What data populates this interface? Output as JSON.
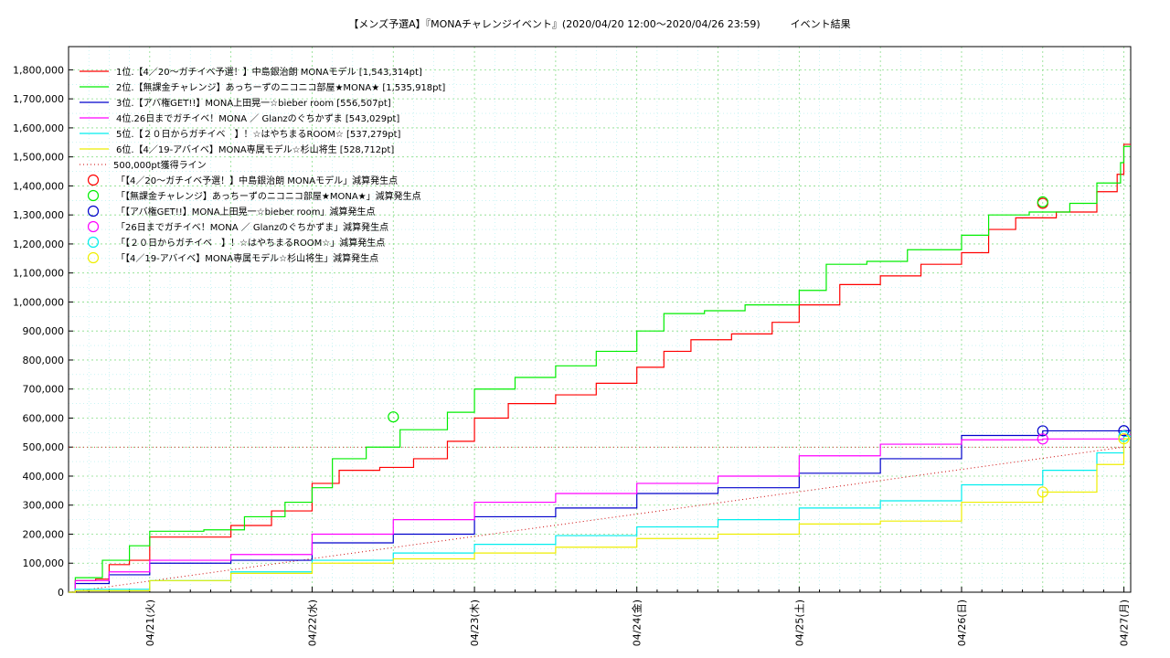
{
  "chart_data": {
    "type": "line",
    "title": "【メンズ予選A】『MONAチャレンジイベント』(2020/04/20 12:00～2020/04/26 23:59)　　　イベント結果",
    "xlabel": "",
    "ylabel": "",
    "xlim": [
      "2020-04-20 12:00",
      "2020-04-27 01:00"
    ],
    "ylim": [
      0,
      1880000
    ],
    "y_ticks": [
      "0",
      "100,000",
      "200,000",
      "300,000",
      "400,000",
      "500,000",
      "600,000",
      "700,000",
      "800,000",
      "900,000",
      "1,000,000",
      "1,100,000",
      "1,200,000",
      "1,300,000",
      "1,400,000",
      "1,500,000",
      "1,600,000",
      "1,700,000",
      "1,800,000"
    ],
    "x_ticks": [
      {
        "t": "2020-04-21 00:00",
        "label": "04/21(火)"
      },
      {
        "t": "2020-04-22 00:00",
        "label": "04/22(水)"
      },
      {
        "t": "2020-04-23 00:00",
        "label": "04/23(木)"
      },
      {
        "t": "2020-04-24 00:00",
        "label": "04/24(金)"
      },
      {
        "t": "2020-04-25 00:00",
        "label": "04/25(土)"
      },
      {
        "t": "2020-04-26 00:00",
        "label": "04/26(日)"
      },
      {
        "t": "2020-04-27 00:00",
        "label": "04/27(月)"
      }
    ],
    "grid": true,
    "legend_position": "top-left",
    "series": [
      {
        "name": "1位.【4／20～ガチイベ予選！】中島銀治朗 MONAモデル [1,543,314pt]",
        "color": "#ff0000",
        "points": [
          [
            "2020-04-20 12:00",
            0
          ],
          [
            "2020-04-20 13:00",
            40000
          ],
          [
            "2020-04-20 16:00",
            45000
          ],
          [
            "2020-04-20 18:00",
            95000
          ],
          [
            "2020-04-20 21:00",
            110000
          ],
          [
            "2020-04-21 00:00",
            190000
          ],
          [
            "2020-04-21 06:00",
            190000
          ],
          [
            "2020-04-21 12:00",
            230000
          ],
          [
            "2020-04-21 18:00",
            280000
          ],
          [
            "2020-04-22 00:00",
            375000
          ],
          [
            "2020-04-22 04:00",
            420000
          ],
          [
            "2020-04-22 10:00",
            430000
          ],
          [
            "2020-04-22 15:00",
            460000
          ],
          [
            "2020-04-22 20:00",
            520000
          ],
          [
            "2020-04-23 00:00",
            600000
          ],
          [
            "2020-04-23 05:00",
            650000
          ],
          [
            "2020-04-23 12:00",
            680000
          ],
          [
            "2020-04-23 18:00",
            720000
          ],
          [
            "2020-04-24 00:00",
            775000
          ],
          [
            "2020-04-24 04:00",
            830000
          ],
          [
            "2020-04-24 08:00",
            870000
          ],
          [
            "2020-04-24 14:00",
            890000
          ],
          [
            "2020-04-24 20:00",
            930000
          ],
          [
            "2020-04-25 00:00",
            990000
          ],
          [
            "2020-04-25 06:00",
            1060000
          ],
          [
            "2020-04-25 12:00",
            1090000
          ],
          [
            "2020-04-25 18:00",
            1130000
          ],
          [
            "2020-04-26 00:00",
            1170000
          ],
          [
            "2020-04-26 04:00",
            1250000
          ],
          [
            "2020-04-26 08:00",
            1290000
          ],
          [
            "2020-04-26 14:00",
            1310000
          ],
          [
            "2020-04-26 20:00",
            1380000
          ],
          [
            "2020-04-26 23:00",
            1440000
          ],
          [
            "2020-04-26 23:59",
            1543314
          ]
        ]
      },
      {
        "name": "2位.【無課金チャレンジ】あっちーずのニコニコ部屋★MONA★ [1,535,918pt]",
        "color": "#00ee00",
        "points": [
          [
            "2020-04-20 12:00",
            0
          ],
          [
            "2020-04-20 13:00",
            50000
          ],
          [
            "2020-04-20 17:00",
            110000
          ],
          [
            "2020-04-20 21:00",
            160000
          ],
          [
            "2020-04-21 00:00",
            210000
          ],
          [
            "2020-04-21 08:00",
            215000
          ],
          [
            "2020-04-21 14:00",
            260000
          ],
          [
            "2020-04-21 20:00",
            310000
          ],
          [
            "2020-04-22 00:00",
            360000
          ],
          [
            "2020-04-22 03:00",
            460000
          ],
          [
            "2020-04-22 08:00",
            500000
          ],
          [
            "2020-04-22 13:00",
            560000
          ],
          [
            "2020-04-22 20:00",
            620000
          ],
          [
            "2020-04-23 00:00",
            700000
          ],
          [
            "2020-04-23 06:00",
            740000
          ],
          [
            "2020-04-23 12:00",
            780000
          ],
          [
            "2020-04-23 18:00",
            830000
          ],
          [
            "2020-04-24 00:00",
            900000
          ],
          [
            "2020-04-24 04:00",
            960000
          ],
          [
            "2020-04-24 10:00",
            970000
          ],
          [
            "2020-04-24 16:00",
            990000
          ],
          [
            "2020-04-25 00:00",
            1040000
          ],
          [
            "2020-04-25 04:00",
            1130000
          ],
          [
            "2020-04-25 10:00",
            1140000
          ],
          [
            "2020-04-25 16:00",
            1180000
          ],
          [
            "2020-04-26 00:00",
            1230000
          ],
          [
            "2020-04-26 04:00",
            1300000
          ],
          [
            "2020-04-26 10:00",
            1310000
          ],
          [
            "2020-04-26 16:00",
            1340000
          ],
          [
            "2020-04-26 20:00",
            1410000
          ],
          [
            "2020-04-26 23:30",
            1480000
          ],
          [
            "2020-04-26 23:59",
            1535918
          ]
        ]
      },
      {
        "name": "3位.【アバ権GET!!】MONA上田晃一☆bieber room [556,507pt]",
        "color": "#0000cc",
        "points": [
          [
            "2020-04-20 12:00",
            0
          ],
          [
            "2020-04-20 13:00",
            30000
          ],
          [
            "2020-04-20 18:00",
            60000
          ],
          [
            "2020-04-21 00:00",
            100000
          ],
          [
            "2020-04-21 12:00",
            110000
          ],
          [
            "2020-04-22 00:00",
            170000
          ],
          [
            "2020-04-22 12:00",
            200000
          ],
          [
            "2020-04-23 00:00",
            260000
          ],
          [
            "2020-04-23 12:00",
            290000
          ],
          [
            "2020-04-24 00:00",
            340000
          ],
          [
            "2020-04-24 12:00",
            360000
          ],
          [
            "2020-04-25 00:00",
            410000
          ],
          [
            "2020-04-25 12:00",
            460000
          ],
          [
            "2020-04-26 00:00",
            540000
          ],
          [
            "2020-04-26 12:00",
            556000
          ],
          [
            "2020-04-26 23:59",
            556507
          ]
        ]
      },
      {
        "name": "4位.26日までガチイベ！MONA ／ Glanzのぐちかずま [543,029pt]",
        "color": "#ff00ff",
        "points": [
          [
            "2020-04-20 12:00",
            0
          ],
          [
            "2020-04-20 13:00",
            40000
          ],
          [
            "2020-04-20 18:00",
            70000
          ],
          [
            "2020-04-21 00:00",
            110000
          ],
          [
            "2020-04-21 12:00",
            130000
          ],
          [
            "2020-04-22 00:00",
            200000
          ],
          [
            "2020-04-22 12:00",
            250000
          ],
          [
            "2020-04-23 00:00",
            310000
          ],
          [
            "2020-04-23 12:00",
            340000
          ],
          [
            "2020-04-24 00:00",
            375000
          ],
          [
            "2020-04-24 12:00",
            400000
          ],
          [
            "2020-04-25 00:00",
            470000
          ],
          [
            "2020-04-25 12:00",
            510000
          ],
          [
            "2020-04-26 00:00",
            525000
          ],
          [
            "2020-04-26 12:00",
            528000
          ],
          [
            "2020-04-26 23:59",
            543029
          ]
        ]
      },
      {
        "name": "5位.【２０日からガチイベ　】！☆はやちまるROOM☆ [537,279pt]",
        "color": "#00eeee",
        "points": [
          [
            "2020-04-20 12:00",
            0
          ],
          [
            "2020-04-20 13:00",
            10000
          ],
          [
            "2020-04-21 00:00",
            40000
          ],
          [
            "2020-04-21 12:00",
            70000
          ],
          [
            "2020-04-22 00:00",
            110000
          ],
          [
            "2020-04-22 12:00",
            135000
          ],
          [
            "2020-04-23 00:00",
            165000
          ],
          [
            "2020-04-23 12:00",
            195000
          ],
          [
            "2020-04-24 00:00",
            225000
          ],
          [
            "2020-04-24 12:00",
            250000
          ],
          [
            "2020-04-25 00:00",
            290000
          ],
          [
            "2020-04-25 12:00",
            315000
          ],
          [
            "2020-04-26 00:00",
            370000
          ],
          [
            "2020-04-26 12:00",
            420000
          ],
          [
            "2020-04-26 20:00",
            480000
          ],
          [
            "2020-04-26 23:59",
            537279
          ]
        ]
      },
      {
        "name": "6位.【4／19-アバイベ】MONA専属モデル☆杉山将生 [528,712pt]",
        "color": "#eeee00",
        "points": [
          [
            "2020-04-20 12:00",
            0
          ],
          [
            "2020-04-20 13:00",
            5000
          ],
          [
            "2020-04-21 00:00",
            40000
          ],
          [
            "2020-04-21 12:00",
            65000
          ],
          [
            "2020-04-22 00:00",
            100000
          ],
          [
            "2020-04-22 12:00",
            115000
          ],
          [
            "2020-04-23 00:00",
            135000
          ],
          [
            "2020-04-23 12:00",
            155000
          ],
          [
            "2020-04-24 00:00",
            185000
          ],
          [
            "2020-04-24 12:00",
            200000
          ],
          [
            "2020-04-25 00:00",
            235000
          ],
          [
            "2020-04-25 12:00",
            245000
          ],
          [
            "2020-04-26 00:00",
            310000
          ],
          [
            "2020-04-26 12:00",
            345000
          ],
          [
            "2020-04-26 20:00",
            440000
          ],
          [
            "2020-04-26 23:59",
            528712
          ]
        ]
      }
    ],
    "reference_line": {
      "name": "500,000pt獲得ライン",
      "color": "#cc0000",
      "points": [
        [
          "2020-04-20 12:00",
          0
        ],
        [
          "2020-04-26 23:59",
          500000
        ]
      ]
    },
    "markers": [
      {
        "name": "「【4／20～ガチイベ予選！】中島銀治朗 MONAモデル」減算発生点",
        "color": "#ff0000",
        "points": [
          [
            "2020-04-26 12:00",
            1340000
          ]
        ]
      },
      {
        "name": "「【無課金チャレンジ】あっちーずのニコニコ部屋★MONA★」減算発生点",
        "color": "#00ee00",
        "points": [
          [
            "2020-04-22 12:00",
            604000
          ],
          [
            "2020-04-26 12:00",
            1345000
          ]
        ]
      },
      {
        "name": "「【アバ権GET!!】MONA上田晃一☆bieber room」減算発生点",
        "color": "#0000cc",
        "points": [
          [
            "2020-04-26 12:00",
            556000
          ],
          [
            "2020-04-26 23:59",
            556507
          ]
        ]
      },
      {
        "name": "「26日までガチイベ！MONA ／ Glanzのぐちかずま」減算発生点",
        "color": "#ff00ff",
        "points": [
          [
            "2020-04-26 12:00",
            528000
          ]
        ]
      },
      {
        "name": "「【２０日からガチイベ　】！☆はやちまるROOM☆」減算発生点",
        "color": "#00eeee",
        "points": [
          [
            "2020-04-26 23:59",
            537279
          ]
        ]
      },
      {
        "name": "「【4／19-アバイベ】MONA専属モデル☆杉山将生」減算発生点",
        "color": "#eeee00",
        "points": [
          [
            "2020-04-26 12:00",
            345000
          ],
          [
            "2020-04-26 23:59",
            528712
          ]
        ]
      }
    ]
  }
}
